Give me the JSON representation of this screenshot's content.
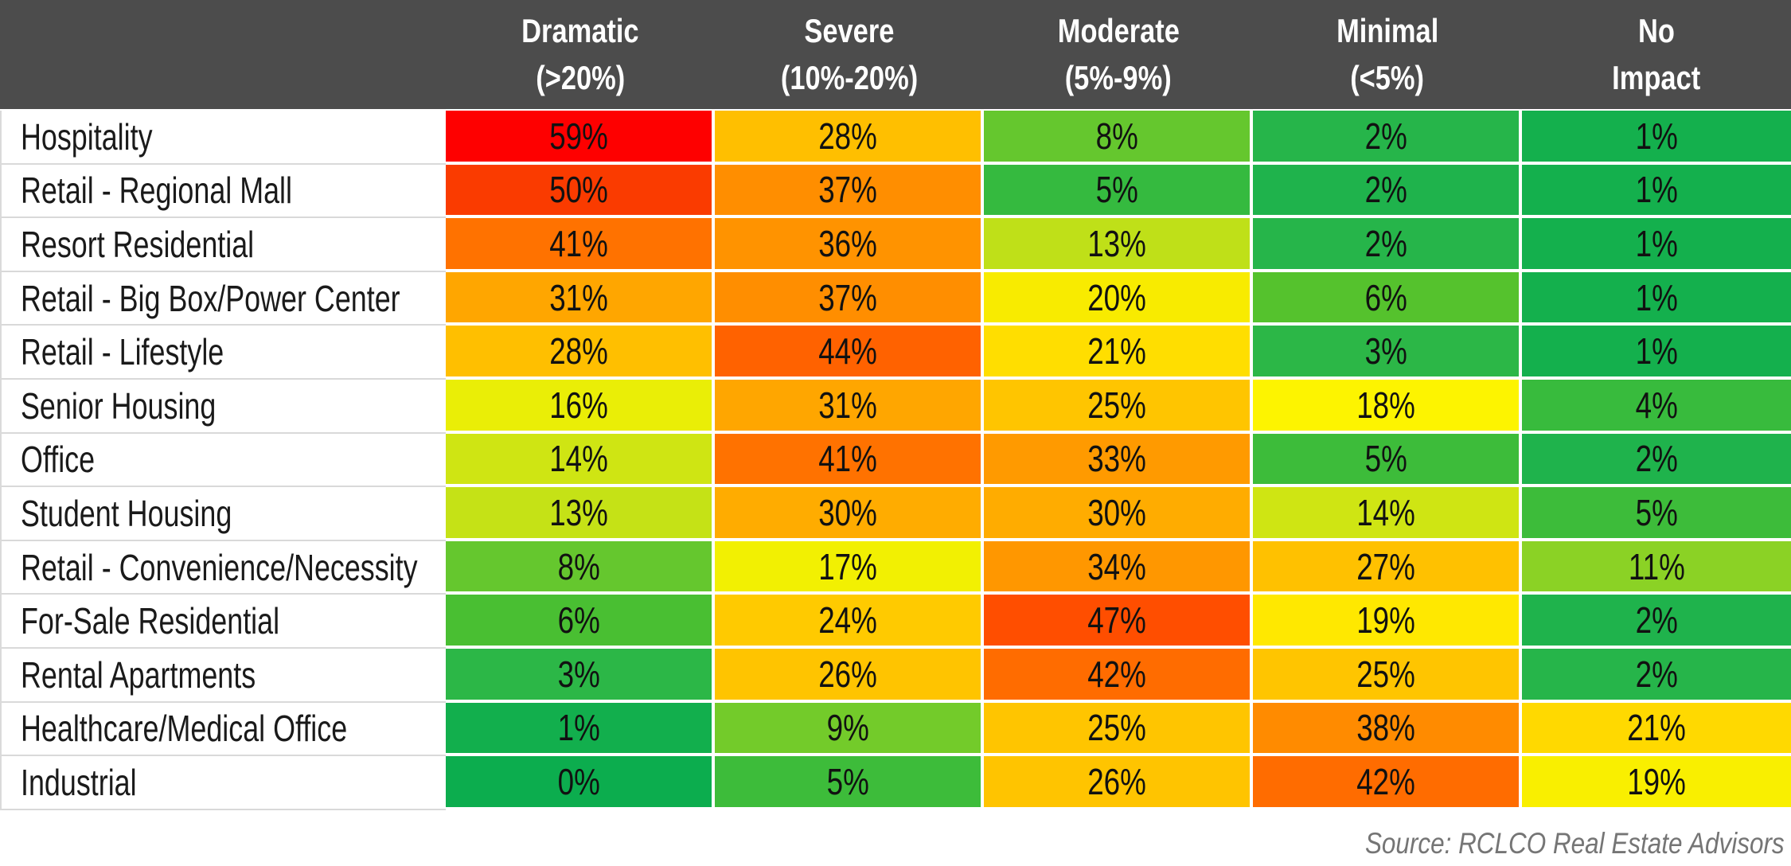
{
  "header": {
    "columns": [
      {
        "line1": "Dramatic",
        "line2": "(>20%)"
      },
      {
        "line1": "Severe",
        "line2": "(10%-20%)"
      },
      {
        "line1": "Moderate",
        "line2": "(5%-9%)"
      },
      {
        "line1": "Minimal",
        "line2": "(<5%)"
      },
      {
        "line1": "No",
        "line2": "Impact"
      }
    ],
    "background": "#4C4C4C",
    "text_color": "#FFFFFF"
  },
  "rows": [
    {
      "label": "Hospitality",
      "cells": [
        {
          "value": "59%",
          "color": "#FE0000"
        },
        {
          "value": "28%",
          "color": "#FFBF00"
        },
        {
          "value": "8%",
          "color": "#65C72E"
        },
        {
          "value": "2%",
          "color": "#26B54A"
        },
        {
          "value": "1%",
          "color": "#14B04D"
        }
      ]
    },
    {
      "label": "Retail - Regional Mall",
      "cells": [
        {
          "value": "50%",
          "color": "#FA3B00"
        },
        {
          "value": "37%",
          "color": "#FF8E00"
        },
        {
          "value": "5%",
          "color": "#35BA3F"
        },
        {
          "value": "2%",
          "color": "#1FB34C"
        },
        {
          "value": "1%",
          "color": "#14B04D"
        }
      ]
    },
    {
      "label": "Resort Residential",
      "cells": [
        {
          "value": "41%",
          "color": "#FF7200"
        },
        {
          "value": "36%",
          "color": "#FF9300"
        },
        {
          "value": "13%",
          "color": "#BFE018"
        },
        {
          "value": "2%",
          "color": "#26B54A"
        },
        {
          "value": "1%",
          "color": "#14B04D"
        }
      ]
    },
    {
      "label": "Retail - Big Box/Power Center",
      "cells": [
        {
          "value": "31%",
          "color": "#FFA600"
        },
        {
          "value": "37%",
          "color": "#FF8E00"
        },
        {
          "value": "20%",
          "color": "#F8EB00"
        },
        {
          "value": "6%",
          "color": "#55C22D"
        },
        {
          "value": "1%",
          "color": "#14B04D"
        }
      ]
    },
    {
      "label": "Retail - Lifestyle",
      "cells": [
        {
          "value": "28%",
          "color": "#FFBF00"
        },
        {
          "value": "44%",
          "color": "#FF6200"
        },
        {
          "value": "21%",
          "color": "#FFDE00"
        },
        {
          "value": "3%",
          "color": "#2CB747"
        },
        {
          "value": "1%",
          "color": "#14B04D"
        }
      ]
    },
    {
      "label": "Senior Housing",
      "cells": [
        {
          "value": "16%",
          "color": "#EAEE06"
        },
        {
          "value": "31%",
          "color": "#FFA600"
        },
        {
          "value": "25%",
          "color": "#FFC500"
        },
        {
          "value": "18%",
          "color": "#FDF400"
        },
        {
          "value": "4%",
          "color": "#38BB3D"
        }
      ]
    },
    {
      "label": "Office",
      "cells": [
        {
          "value": "14%",
          "color": "#CFE513"
        },
        {
          "value": "41%",
          "color": "#FF7200"
        },
        {
          "value": "33%",
          "color": "#FF9A00"
        },
        {
          "value": "5%",
          "color": "#3DBC3A"
        },
        {
          "value": "2%",
          "color": "#1FB34C"
        }
      ]
    },
    {
      "label": "Student Housing",
      "cells": [
        {
          "value": "13%",
          "color": "#C5E216"
        },
        {
          "value": "30%",
          "color": "#FFAC00"
        },
        {
          "value": "30%",
          "color": "#FFAC00"
        },
        {
          "value": "14%",
          "color": "#CFE513"
        },
        {
          "value": "5%",
          "color": "#3DBC3A"
        }
      ]
    },
    {
      "label": "Retail - Convenience/Necessity",
      "cells": [
        {
          "value": "8%",
          "color": "#65C72E"
        },
        {
          "value": "17%",
          "color": "#F2F002"
        },
        {
          "value": "34%",
          "color": "#FF9700"
        },
        {
          "value": "27%",
          "color": "#FFC100"
        },
        {
          "value": "11%",
          "color": "#8BD225"
        }
      ]
    },
    {
      "label": "For-Sale Residential",
      "cells": [
        {
          "value": "6%",
          "color": "#49BF32"
        },
        {
          "value": "24%",
          "color": "#FFCA00"
        },
        {
          "value": "47%",
          "color": "#FF4E00"
        },
        {
          "value": "19%",
          "color": "#FFE800"
        },
        {
          "value": "2%",
          "color": "#1FB34C"
        }
      ]
    },
    {
      "label": "Rental Apartments",
      "cells": [
        {
          "value": "3%",
          "color": "#2CB747"
        },
        {
          "value": "26%",
          "color": "#FFC400"
        },
        {
          "value": "42%",
          "color": "#FF6C00"
        },
        {
          "value": "25%",
          "color": "#FFC500"
        },
        {
          "value": "2%",
          "color": "#26B54A"
        }
      ]
    },
    {
      "label": "Healthcare/Medical Office",
      "cells": [
        {
          "value": "1%",
          "color": "#12AF4D"
        },
        {
          "value": "9%",
          "color": "#73CB2A"
        },
        {
          "value": "25%",
          "color": "#FFC500"
        },
        {
          "value": "38%",
          "color": "#FF8B00"
        },
        {
          "value": "21%",
          "color": "#FFD900"
        }
      ]
    },
    {
      "label": "Industrial",
      "cells": [
        {
          "value": "0%",
          "color": "#0CAD4E"
        },
        {
          "value": "5%",
          "color": "#3DBC3A"
        },
        {
          "value": "26%",
          "color": "#FFC400"
        },
        {
          "value": "42%",
          "color": "#FF6C00"
        },
        {
          "value": "19%",
          "color": "#F9EF00"
        }
      ]
    }
  ],
  "footer": {
    "source": "Source: RCLCO Real Estate Advisors"
  },
  "chart_data": {
    "type": "heatmap",
    "title": "",
    "columns": [
      "Dramatic (>20%)",
      "Severe (10%-20%)",
      "Moderate (5%-9%)",
      "Minimal (<5%)",
      "No Impact"
    ],
    "rows": [
      "Hospitality",
      "Retail - Regional Mall",
      "Resort Residential",
      "Retail - Big Box/Power Center",
      "Retail - Lifestyle",
      "Senior Housing",
      "Office",
      "Student Housing",
      "Retail - Convenience/Necessity",
      "For-Sale Residential",
      "Rental Apartments",
      "Healthcare/Medical Office",
      "Industrial"
    ],
    "values_percent": [
      [
        59,
        28,
        8,
        2,
        1
      ],
      [
        50,
        37,
        5,
        2,
        1
      ],
      [
        41,
        36,
        13,
        2,
        1
      ],
      [
        31,
        37,
        20,
        6,
        1
      ],
      [
        28,
        44,
        21,
        3,
        1
      ],
      [
        16,
        31,
        25,
        18,
        4
      ],
      [
        14,
        41,
        33,
        5,
        2
      ],
      [
        13,
        30,
        30,
        14,
        5
      ],
      [
        8,
        17,
        34,
        27,
        11
      ],
      [
        6,
        24,
        47,
        19,
        2
      ],
      [
        3,
        26,
        42,
        25,
        2
      ],
      [
        1,
        9,
        25,
        38,
        21
      ],
      [
        0,
        5,
        26,
        42,
        19
      ]
    ],
    "color_scale": {
      "low_green": "#0CAD4E",
      "mid_yellow": "#FDF400",
      "high_red": "#FE0000"
    },
    "annotations": [
      "Source: RCLCO Real Estate Advisors"
    ],
    "legend_position": "none",
    "grid": "white cell separators"
  }
}
